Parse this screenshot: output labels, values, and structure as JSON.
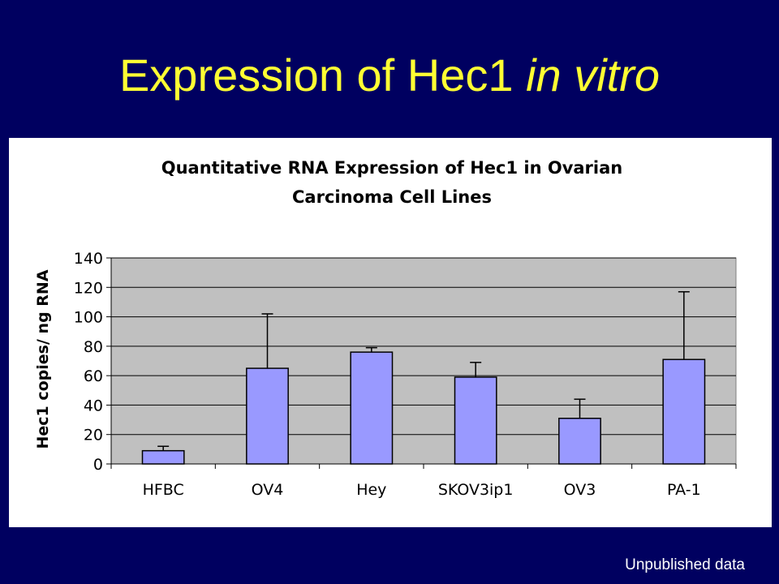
{
  "slide": {
    "title_main": "Expression of Hec1 ",
    "title_italic": "in vitro",
    "footnote": "Unpublished data",
    "colors": {
      "background": "#000060",
      "title": "#ffff33"
    }
  },
  "chart_data": {
    "type": "bar",
    "title_line1": "Quantitative RNA Expression of Hec1 in Ovarian",
    "title_line2": "Carcinoma Cell Lines",
    "ylabel": "Hec1 copies/ ng RNA",
    "xlabel": "",
    "categories": [
      "HFBC",
      "OV4",
      "Hey",
      "SKOV3ip1",
      "OV3",
      "PA-1"
    ],
    "values": [
      9,
      65,
      76,
      59,
      31,
      71
    ],
    "error_upper": [
      12,
      102,
      79,
      69,
      44,
      117
    ],
    "ylim": [
      0,
      140
    ],
    "yticks": [
      0,
      20,
      40,
      60,
      80,
      100,
      120,
      140
    ],
    "grid": true,
    "legend": "none",
    "colors": {
      "bar": "#9999ff",
      "plot_bg": "#c0c0c0",
      "grid": "#000000"
    }
  }
}
